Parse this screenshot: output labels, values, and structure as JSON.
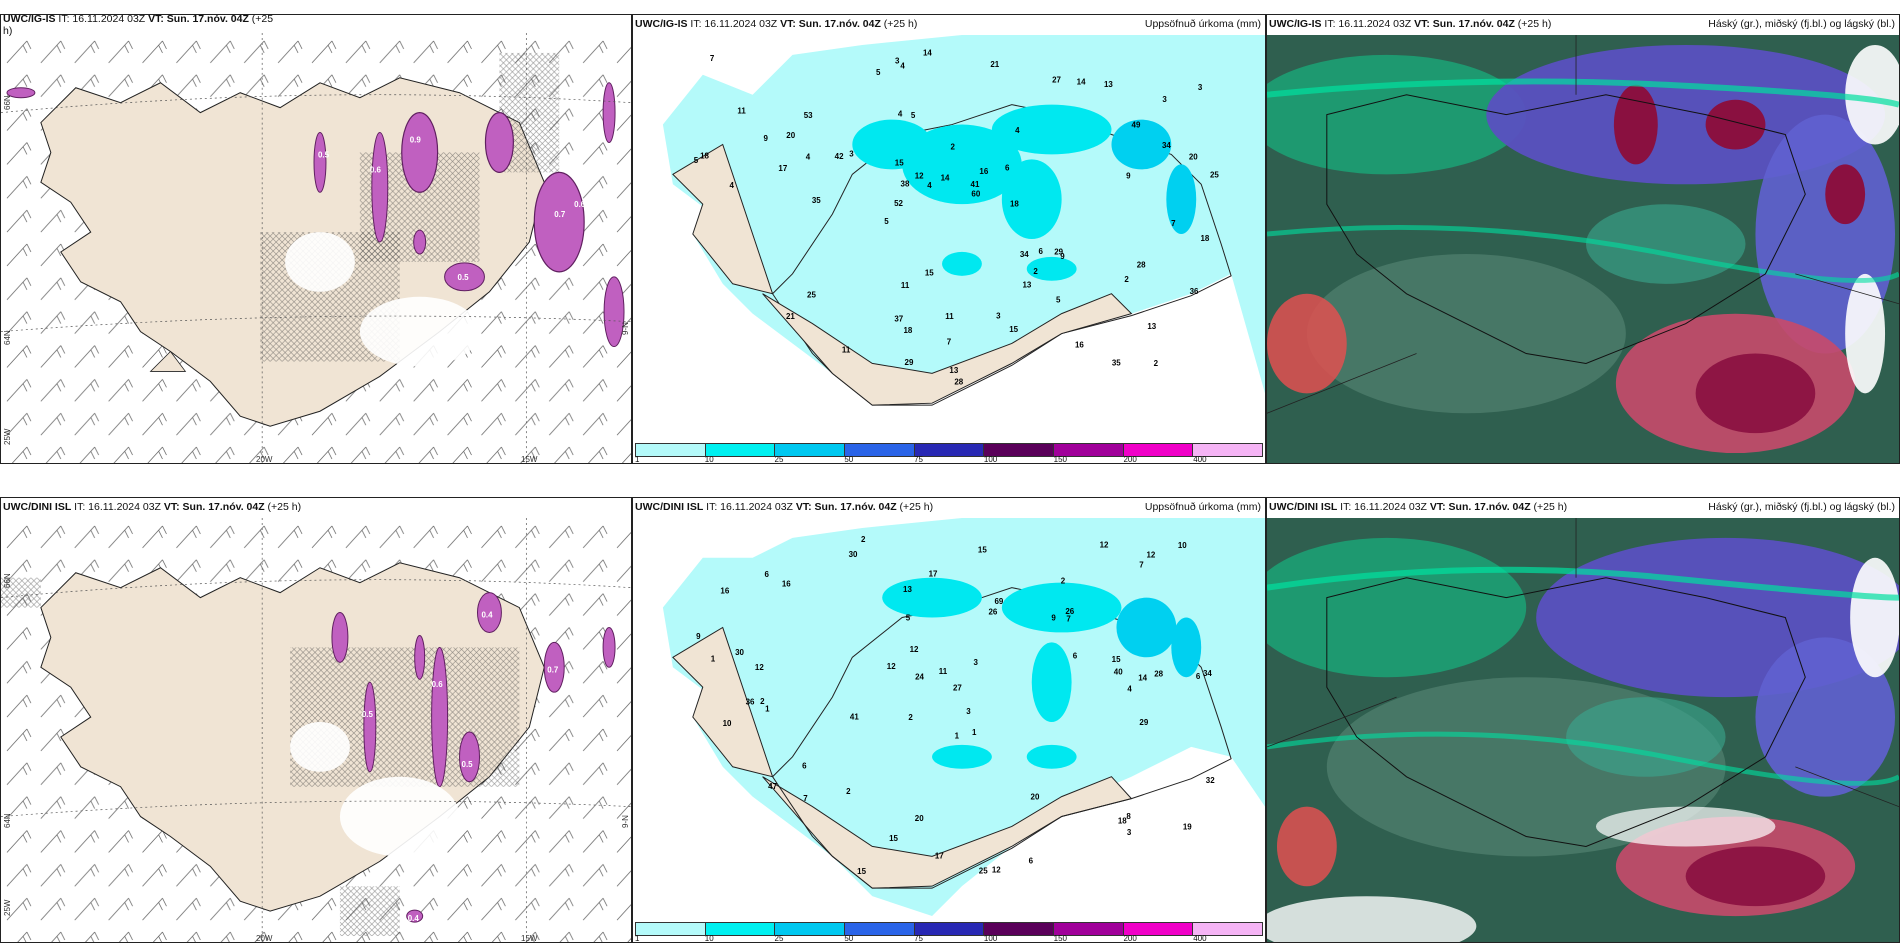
{
  "rows": [
    {
      "model": "UWC/IG-IS",
      "left": {
        "title_model": "UWC/IG-IS",
        "title_rest": " IT: 16.11.2024 03Z ",
        "title_vt": "VT: Sun. 17.nóv. 04Z",
        "title_tail": " (+25",
        "title_tail2": "h)"
      },
      "mid": {
        "title_model": "UWC/IG-IS",
        "title_rest": " IT: 16.11.2024 03Z ",
        "title_vt": "VT: Sun. 17.nóv. 04Z",
        "title_tail": " (+25 h)",
        "right_title": "Uppsöfnuð úrkoma (mm)"
      },
      "right": {
        "title_model": "UWC/IG-IS",
        "title_rest": " IT: 16.11.2024 03Z ",
        "title_vt": "VT: Sun. 17.nóv. 04Z",
        "title_tail": " (+25 h)",
        "right_title": "Háský (gr.), miðský (fj.bl.) og lágský (bl.)"
      }
    },
    {
      "model": "UWC/DINI ISL",
      "left": {
        "title_model": "UWC/DINI ISL",
        "title_rest": " IT: 16.11.2024 03Z ",
        "title_vt": "VT: Sun. 17.nóv. 04Z",
        "title_tail": " (+25 h)",
        "title_tail2": ""
      },
      "mid": {
        "title_model": "UWC/DINI ISL",
        "title_rest": " IT: 16.11.2024 03Z ",
        "title_vt": "VT: Sun. 17.nóv. 04Z",
        "title_tail": " (+25 h)",
        "right_title": "Uppsöfnuð úrkoma (mm)"
      },
      "right": {
        "title_model": "UWC/DINI ISL",
        "title_rest": " IT: 16.11.2024 03Z ",
        "title_vt": "VT: Sun. 17.nóv. 04Z",
        "title_tail": " (+25 h)",
        "right_title": "Háský (gr.), miðský (fj.bl.) og lágský (bl.)"
      }
    }
  ],
  "axes": {
    "lat1": "66N",
    "lat2": "64N",
    "lon_left": "25W",
    "lon1": "20W",
    "lon2": "15W",
    "lon_right": "9-N"
  },
  "colorbar": {
    "ticks": [
      "1",
      "10",
      "25",
      "50",
      "75",
      "100",
      "150",
      "200",
      "400"
    ],
    "colors": [
      "#b4fafa",
      "#00f0f0",
      "#00c8f0",
      "#2a64e8",
      "#2828b4",
      "#5a005a",
      "#a0009a",
      "#f000c8",
      "#f5b4f5"
    ]
  },
  "precip_labels_top": [
    "2",
    "4",
    "3",
    "5",
    "4",
    "4",
    "2",
    "3",
    "5",
    "16",
    "9",
    "11",
    "4",
    "25",
    "34",
    "34",
    "52",
    "37",
    "38",
    "53",
    "27",
    "25",
    "35",
    "13",
    "29",
    "28",
    "42",
    "17",
    "13",
    "20",
    "41",
    "18",
    "60",
    "49",
    "3",
    "2",
    "15",
    "21",
    "11",
    "13",
    "14",
    "35",
    "18",
    "20",
    "14",
    "21",
    "5",
    "12",
    "36",
    "11",
    "11",
    "6",
    "4",
    "7",
    "9",
    "18",
    "15",
    "7",
    "14",
    "18",
    "28",
    "29",
    "9",
    "15",
    "16",
    "13",
    "3",
    "3",
    "7",
    "6",
    "5",
    "4",
    "2",
    "5"
  ],
  "precip_labels_bottom": [
    "2",
    "2",
    "6",
    "2",
    "1",
    "2",
    "16",
    "9",
    "10",
    "26",
    "27",
    "30",
    "41",
    "25",
    "12",
    "20",
    "12",
    "6",
    "6",
    "12",
    "36",
    "34",
    "28",
    "30",
    "24",
    "40",
    "8",
    "18",
    "69",
    "47",
    "12",
    "20",
    "32",
    "15",
    "15",
    "10",
    "17",
    "15",
    "6",
    "6",
    "17",
    "7",
    "3",
    "26",
    "9",
    "3",
    "13",
    "4",
    "3",
    "7",
    "15",
    "7",
    "12",
    "11",
    "12",
    "5",
    "19",
    "29",
    "16",
    "2",
    "1",
    "1",
    "14",
    "1"
  ],
  "contour_labels": [
    "0.9",
    "0.6",
    "0.5",
    "0.7",
    "0.6",
    "0.5",
    "0.4",
    "0.6",
    "0.5",
    "0.7",
    "0.5",
    "0.4"
  ]
}
